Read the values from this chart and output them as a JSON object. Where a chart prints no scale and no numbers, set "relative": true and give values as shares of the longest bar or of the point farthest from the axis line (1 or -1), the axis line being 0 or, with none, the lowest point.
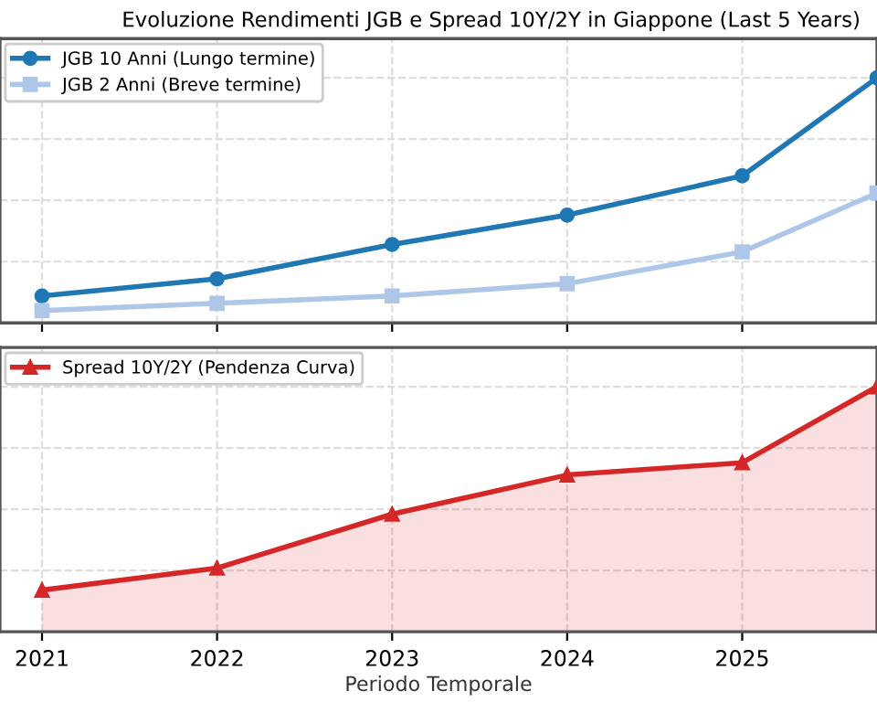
{
  "chart_data": [
    {
      "type": "line",
      "title": "Evoluzione Rendimenti JGB e Spread 10Y/2Y in Giappone (Last 5 Years)",
      "x": [
        2021,
        2022,
        2023,
        2024,
        2025,
        2025.77
      ],
      "xlim": [
        2020.76,
        2025.77
      ],
      "xticks": [
        {
          "value": 2021,
          "label": null
        },
        {
          "value": 2022,
          "label": null
        },
        {
          "value": 2023,
          "label": null
        },
        {
          "value": 2024,
          "label": null
        },
        {
          "value": 2025,
          "label": null
        }
      ],
      "relative": true,
      "tick_labels": false,
      "grid": true,
      "legend": "top left",
      "line_style": "solid",
      "series": [
        {
          "name": "JGB 10 Anni (Lungo termine)",
          "color": "#1f77b4",
          "marker": "circle",
          "values": [
            0.11,
            0.18,
            0.32,
            0.44,
            0.6,
            1.0
          ]
        },
        {
          "name": "JGB 2 Anni (Breve termine)",
          "color": "#aec7e8",
          "marker": "square",
          "values": [
            0.05,
            0.08,
            0.11,
            0.16,
            0.29,
            0.53
          ]
        }
      ]
    },
    {
      "type": "area",
      "xlabel": "Periodo Temporale",
      "x": [
        2021,
        2022,
        2023,
        2024,
        2025,
        2025.77
      ],
      "xlim": [
        2020.76,
        2025.77
      ],
      "xticks": [
        2021,
        2022,
        2023,
        2024,
        2025
      ],
      "relative": true,
      "tick_labels": "x",
      "grid": true,
      "legend": "top left",
      "line_style": "solid",
      "series": [
        {
          "name": "Spread 10Y/2Y (Pendenza Curva)",
          "color": "#d62728",
          "marker": "triangle",
          "values": [
            0.17,
            0.26,
            0.48,
            0.64,
            0.69,
            1.0
          ]
        }
      ]
    }
  ]
}
